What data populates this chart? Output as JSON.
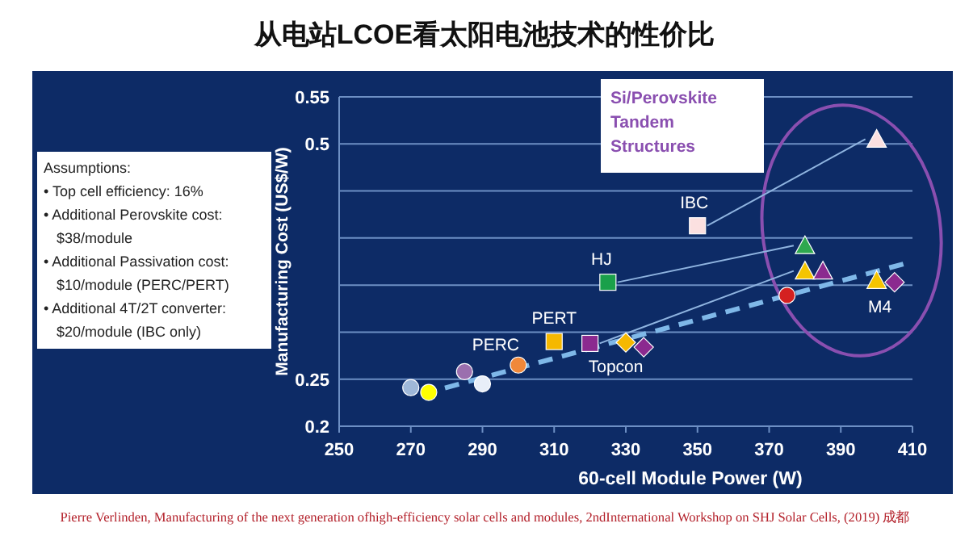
{
  "chart_data": {
    "type": "scatter",
    "title": "从电站LCOE看太阳电池技术的性价比",
    "xlabel": "60-cell Module Power (W)",
    "ylabel": "Manufacturing Cost (US$/W)",
    "xlim": [
      250,
      410
    ],
    "xticks": [
      250,
      270,
      290,
      310,
      330,
      350,
      370,
      390,
      410
    ],
    "ylim": [
      0.2,
      0.55
    ],
    "yticks": [
      0.2,
      0.25,
      {
        "value": 0.3,
        "label": null
      },
      {
        "value": 0.35,
        "label": null
      },
      {
        "value": 0.4,
        "label": null
      },
      {
        "value": 0.45,
        "label": null
      },
      0.5,
      0.55
    ],
    "grid": "y",
    "series": [
      {
        "type": "scatter",
        "marker": "circle",
        "x": [
          270,
          275,
          285,
          290,
          300,
          375
        ],
        "values": [
          0.241,
          0.236,
          0.258,
          0.245,
          0.265,
          0.339
        ],
        "colors": [
          "#9fb8d8",
          "#ffff00",
          "#9b6fae",
          "#e8eef8",
          "#f0883a",
          "#d42020"
        ]
      },
      {
        "type": "scatter",
        "marker": "square",
        "x": [
          310,
          320,
          325,
          350
        ],
        "values": [
          0.29,
          0.288,
          0.353,
          0.413
        ],
        "colors": [
          "#f5b800",
          "#8b2a8f",
          "#1aa04a",
          "#fbe0e0"
        ]
      },
      {
        "type": "scatter",
        "marker": "diamond",
        "x": [
          330,
          335,
          405
        ],
        "values": [
          0.289,
          0.284,
          0.353
        ],
        "colors": [
          "#f5b800",
          "#8b2a8f",
          "#8b2a8f"
        ]
      },
      {
        "type": "scatter",
        "marker": "triangle",
        "x": [
          380,
          380,
          385,
          400,
          400
        ],
        "values": [
          0.392,
          0.365,
          0.365,
          0.355,
          0.505
        ],
        "colors": [
          "#2fa84f",
          "#f5c400",
          "#8b2a8f",
          "#f5c400",
          "#fbe0e0"
        ]
      },
      {
        "type": "line",
        "line_style": "dashed",
        "marker": "none",
        "color": "#7fb8e8",
        "x": [
          273,
          410
        ],
        "values": [
          0.234,
          0.375
        ]
      }
    ],
    "annotations": [
      {
        "text": "PERC",
        "x": 300,
        "y": 0.265
      },
      {
        "text": "PERT",
        "x": 310,
        "y": 0.29
      },
      {
        "text": "Topcon",
        "x": 320,
        "y": 0.288
      },
      {
        "text": "HJ",
        "x": 325,
        "y": 0.353
      },
      {
        "text": "IBC",
        "x": 350,
        "y": 0.413
      },
      {
        "text": "M4",
        "x": 400,
        "y": 0.355
      },
      "Si/Perovskite\nTandem\nStructures",
      "Assumptions:\n• Top cell efficiency: 16%\n• Additional Perovskite cost:\n  $38/module\n• Additional Passivation cost:\n  $10/module (PERC/PERT)\n• Additional 4T/2T converter:\n  $20/module (IBC only)",
      "Pierre Verlinden, Manufacturing of the next generation ofhigh-efficiency solar cells and modules, 2ndInternational Workshop on SHJ Solar Cells, (2019) 成都"
    ]
  }
}
